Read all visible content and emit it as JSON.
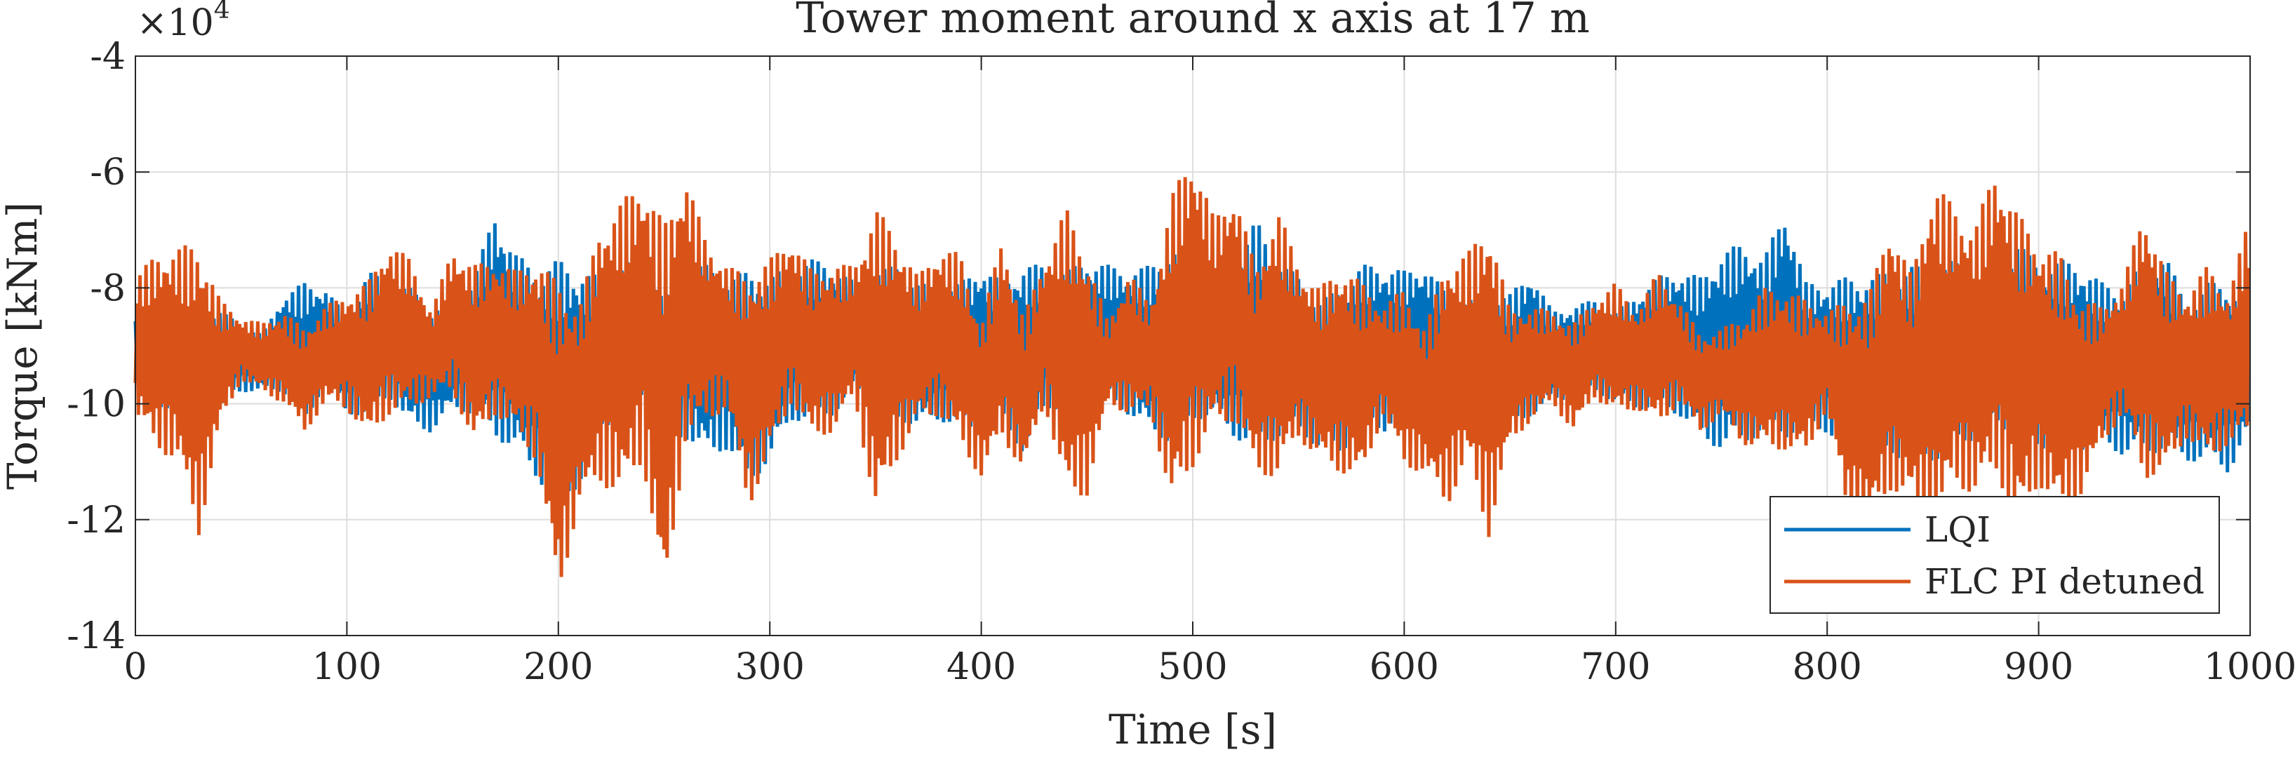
{
  "chart_data": {
    "type": "line",
    "title": "Tower moment around x axis at 17 m",
    "xlabel": "Time [s]",
    "ylabel": "Torque [kNm]",
    "y_multiplier": "×10",
    "y_multiplier_exponent": "4",
    "xlim": [
      0,
      1000
    ],
    "ylim": [
      -14,
      -4
    ],
    "y_scale_factor": 10000,
    "grid": true,
    "legend_position": "bottom-right",
    "xticks": [
      0,
      100,
      200,
      300,
      400,
      500,
      600,
      700,
      800,
      900,
      1000
    ],
    "xtick_labels": [
      "0",
      "100",
      "200",
      "300",
      "400",
      "500",
      "600",
      "700",
      "800",
      "900",
      "1000"
    ],
    "yticks": [
      -14,
      -12,
      -10,
      -8,
      -6,
      -4
    ],
    "ytick_labels": [
      "-14",
      "-12",
      "-10",
      "-8",
      "-6",
      "-4"
    ],
    "series": [
      {
        "name": "LQI",
        "color": "#0072BD",
        "dt": 10,
        "x_start": 0,
        "envelope_min": [
          -9.8,
          -10.2,
          -10.0,
          -9.7,
          -9.9,
          -9.8,
          -9.8,
          -9.8,
          -10.4,
          -9.6,
          -10.2,
          -10.2,
          -9.9,
          -10.4,
          -10.5,
          -10.1,
          -10.2,
          -10.6,
          -10.8,
          -11.3,
          -11.8,
          -11.4,
          -10.5,
          -10.2,
          -9.9,
          -10.7,
          -10.6,
          -10.9,
          -10.8,
          -11.4,
          -11.0,
          -10.3,
          -10.3,
          -10.2,
          -9.8,
          -10.0,
          -10.3,
          -10.4,
          -10.3,
          -10.4,
          -10.6,
          -10.3,
          -10.9,
          -10.1,
          -10.1,
          -10.3,
          -10.0,
          -10.2,
          -10.5,
          -10.7,
          -10.3,
          -10.2,
          -10.6,
          -10.8,
          -10.6,
          -10.5,
          -10.8,
          -10.9,
          -10.3,
          -10.5,
          -10.2,
          -10.2,
          -9.9,
          -10.1,
          -10.3,
          -10.5,
          -10.2,
          -10.0,
          -9.9,
          -9.8,
          -10.0,
          -10.1,
          -10.1,
          -10.2,
          -10.6,
          -10.8,
          -10.7,
          -10.5,
          -10.6,
          -10.4,
          -10.5,
          -11.0,
          -11.0,
          -10.9,
          -11.0,
          -11.0,
          -10.8,
          -10.6,
          -10.4,
          -10.6,
          -10.8,
          -10.7,
          -10.8,
          -10.7,
          -10.9,
          -10.9,
          -10.8,
          -11.0,
          -11.0,
          -11.2,
          -10.5
        ],
        "envelope_max": [
          -8.4,
          -8.2,
          -8.3,
          -8.5,
          -8.4,
          -8.6,
          -8.8,
          -8.1,
          -7.9,
          -8.0,
          -8.5,
          -7.7,
          -7.9,
          -8.0,
          -8.3,
          -8.3,
          -7.8,
          -6.7,
          -7.4,
          -7.7,
          -7.5,
          -7.7,
          -7.8,
          -7.6,
          -7.4,
          -8.2,
          -7.6,
          -7.6,
          -7.8,
          -7.7,
          -7.8,
          -7.6,
          -7.5,
          -7.6,
          -7.9,
          -7.7,
          -7.6,
          -7.9,
          -8.0,
          -7.9,
          -7.6,
          -7.9,
          -7.6,
          -7.6,
          -7.7,
          -7.5,
          -7.6,
          -7.7,
          -7.6,
          -7.3,
          -7.6,
          -7.8,
          -7.6,
          -6.8,
          -7.5,
          -7.8,
          -8.2,
          -8.0,
          -7.6,
          -7.6,
          -7.7,
          -7.6,
          -8.1,
          -8.2,
          -8.1,
          -8.1,
          -7.7,
          -8.4,
          -8.3,
          -8.2,
          -8.4,
          -8.1,
          -7.8,
          -7.7,
          -7.8,
          -7.4,
          -7.2,
          -7.5,
          -6.6,
          -7.9,
          -7.9,
          -7.8,
          -7.8,
          -7.7,
          -7.6,
          -7.7,
          -7.5,
          -7.9,
          -7.8,
          -7.2,
          -7.6,
          -7.5,
          -7.6,
          -7.9,
          -8.0,
          -7.5,
          -7.4,
          -8.3,
          -7.9,
          -7.9,
          -8.4
        ]
      },
      {
        "name": "FLC PI detuned",
        "color": "#D95319",
        "dt": 10,
        "x_start": 0,
        "envelope_min": [
          -10.2,
          -10.8,
          -11.0,
          -12.3,
          -10.4,
          -9.6,
          -9.8,
          -10.0,
          -10.5,
          -10.0,
          -10.1,
          -10.6,
          -10.2,
          -10.1,
          -9.9,
          -9.8,
          -10.7,
          -10.2,
          -10.5,
          -11.0,
          -13.4,
          -11.7,
          -11.4,
          -11.6,
          -11.0,
          -13.5,
          -10.7,
          -10.3,
          -10.1,
          -11.8,
          -10.9,
          -10.0,
          -10.6,
          -10.5,
          -9.9,
          -11.9,
          -11.0,
          -10.3,
          -10.2,
          -10.7,
          -11.3,
          -10.6,
          -11.2,
          -10.0,
          -11.6,
          -11.6,
          -10.0,
          -10.2,
          -10.1,
          -11.8,
          -11.1,
          -10.4,
          -10.3,
          -11.2,
          -11.3,
          -10.6,
          -11.0,
          -11.2,
          -11.3,
          -10.2,
          -11.1,
          -11.2,
          -11.8,
          -11.0,
          -12.3,
          -10.7,
          -10.3,
          -10.0,
          -10.5,
          -9.9,
          -10.2,
          -10.1,
          -10.4,
          -10.0,
          -10.5,
          -10.2,
          -10.7,
          -10.8,
          -10.8,
          -10.9,
          -10.1,
          -12.0,
          -12.1,
          -11.5,
          -11.7,
          -12.3,
          -11.4,
          -11.6,
          -11.2,
          -12.1,
          -11.4,
          -11.9,
          -11.6,
          -10.7,
          -10.2,
          -11.3,
          -11.2,
          -10.6,
          -11.0,
          -10.7,
          -10.6
        ],
        "envelope_max": [
          -7.8,
          -7.4,
          -7.3,
          -7.2,
          -8.2,
          -8.5,
          -8.6,
          -8.4,
          -8.7,
          -8.3,
          -8.1,
          -7.9,
          -7.2,
          -7.5,
          -8.4,
          -7.3,
          -7.6,
          -7.5,
          -7.7,
          -7.5,
          -7.9,
          -8.3,
          -6.9,
          -6.5,
          -6.1,
          -6.9,
          -6.0,
          -7.2,
          -7.6,
          -7.8,
          -7.5,
          -7.1,
          -7.7,
          -7.6,
          -7.6,
          -6.6,
          -7.1,
          -7.8,
          -7.3,
          -7.4,
          -8.6,
          -7.1,
          -8.5,
          -7.5,
          -6.6,
          -7.4,
          -8.6,
          -7.7,
          -8.3,
          -6.4,
          -5.6,
          -6.8,
          -6.3,
          -7.7,
          -6.6,
          -7.6,
          -8.0,
          -7.6,
          -7.9,
          -8.3,
          -8.0,
          -8.7,
          -7.5,
          -7.4,
          -6.8,
          -8.4,
          -8.3,
          -8.4,
          -8.6,
          -8.2,
          -7.9,
          -8.4,
          -7.7,
          -8.2,
          -8.8,
          -8.7,
          -8.5,
          -8.0,
          -8.0,
          -8.2,
          -8.4,
          -8.2,
          -8.1,
          -6.8,
          -7.8,
          -6.1,
          -6.6,
          -6.9,
          -5.9,
          -6.7,
          -7.2,
          -7.4,
          -8.2,
          -8.3,
          -7.9,
          -6.6,
          -7.7,
          -8.1,
          -7.6,
          -8.1,
          -6.7
        ]
      }
    ]
  }
}
